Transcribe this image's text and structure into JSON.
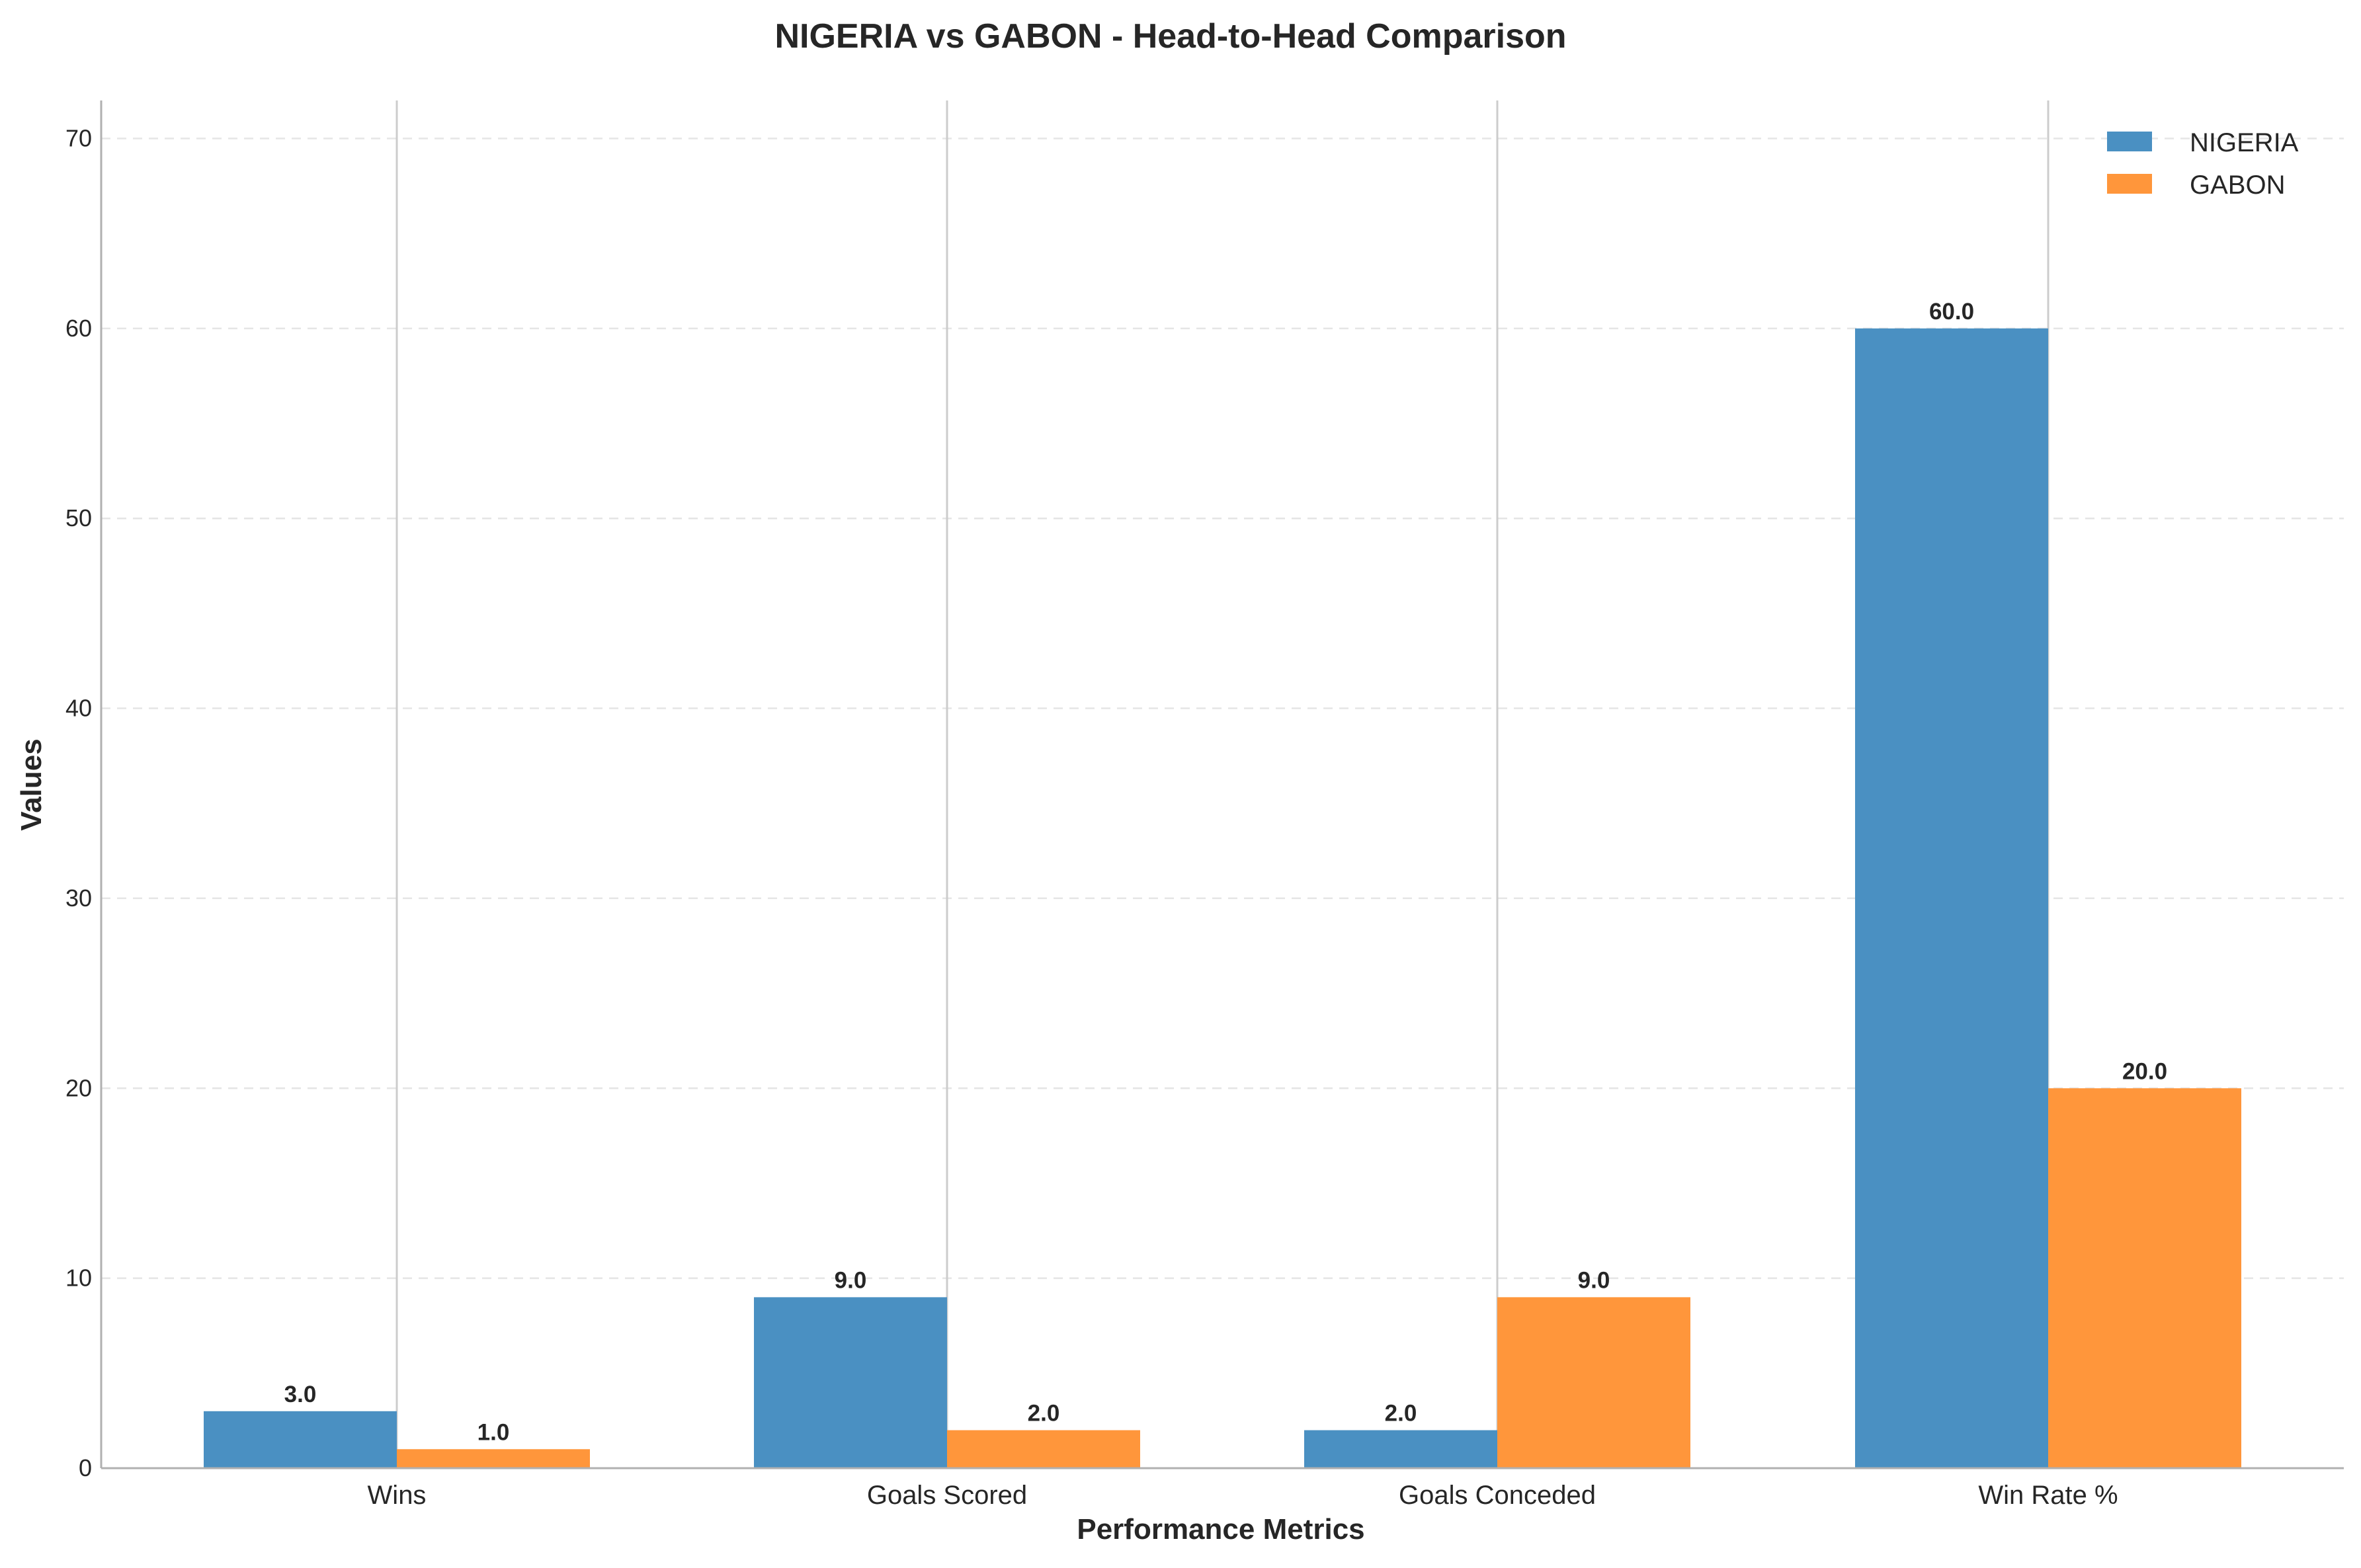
{
  "chart_data": {
    "type": "bar",
    "title": "NIGERIA vs GABON - Head-to-Head Comparison",
    "xlabel": "Performance Metrics",
    "ylabel": "Values",
    "categories": [
      "Wins",
      "Goals Scored",
      "Goals Conceded",
      "Win Rate %"
    ],
    "series": [
      {
        "name": "NIGERIA",
        "values": [
          3.0,
          9.0,
          2.0,
          60.0
        ],
        "color": "#4a90c2"
      },
      {
        "name": "GABON",
        "values": [
          1.0,
          2.0,
          9.0,
          20.0
        ],
        "color": "#ff963b"
      }
    ],
    "data_labels": [
      [
        "3.0",
        "9.0",
        "2.0",
        "60.0"
      ],
      [
        "1.0",
        "2.0",
        "9.0",
        "20.0"
      ]
    ],
    "yticks": [
      0,
      10,
      20,
      30,
      40,
      50,
      60,
      70
    ],
    "ylim": [
      0,
      72
    ],
    "grid": "horizontal dashed",
    "legend_position": "top-right"
  }
}
